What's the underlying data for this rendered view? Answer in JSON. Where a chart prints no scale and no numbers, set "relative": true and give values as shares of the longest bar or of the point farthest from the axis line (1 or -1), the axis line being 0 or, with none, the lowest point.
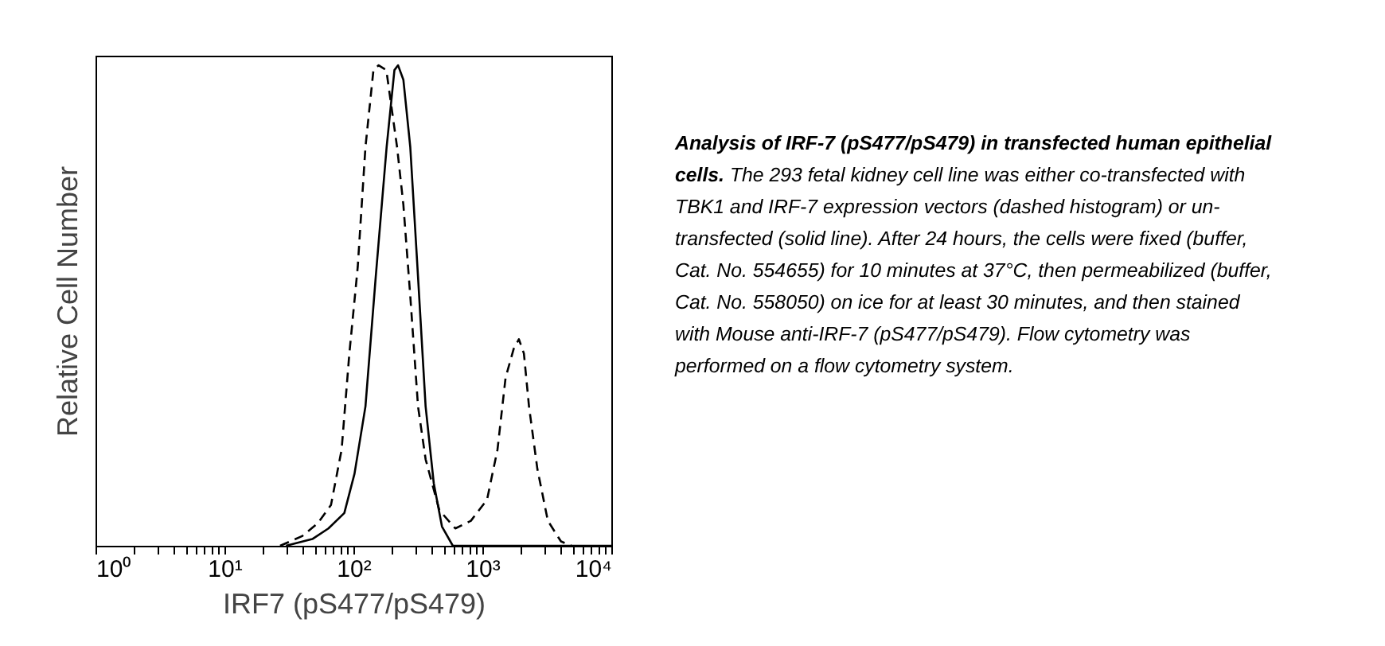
{
  "chart_data": {
    "type": "line",
    "relative": true,
    "log": "x",
    "grid": false,
    "marker": "none",
    "xlabel": "IRF7 (pS477/pS479)",
    "ylabel": "Relative Cell Number",
    "xlim": [
      1,
      10000
    ],
    "xticks": [
      {
        "value": 1,
        "label": "10⁰"
      },
      {
        "value": 2,
        "label": null
      },
      {
        "value": 3,
        "label": null
      },
      {
        "value": 4,
        "label": null
      },
      {
        "value": 5,
        "label": null
      },
      {
        "value": 6,
        "label": null
      },
      {
        "value": 7,
        "label": null
      },
      {
        "value": 8,
        "label": null
      },
      {
        "value": 9,
        "label": null
      },
      {
        "value": 10,
        "label": "10¹"
      },
      {
        "value": 20,
        "label": null
      },
      {
        "value": 30,
        "label": null
      },
      {
        "value": 40,
        "label": null
      },
      {
        "value": 50,
        "label": null
      },
      {
        "value": 60,
        "label": null
      },
      {
        "value": 70,
        "label": null
      },
      {
        "value": 80,
        "label": null
      },
      {
        "value": 90,
        "label": null
      },
      {
        "value": 100,
        "label": "10²"
      },
      {
        "value": 200,
        "label": null
      },
      {
        "value": 300,
        "label": null
      },
      {
        "value": 400,
        "label": null
      },
      {
        "value": 500,
        "label": null
      },
      {
        "value": 600,
        "label": null
      },
      {
        "value": 700,
        "label": null
      },
      {
        "value": 800,
        "label": null
      },
      {
        "value": 900,
        "label": null
      },
      {
        "value": 1000,
        "label": "10³"
      },
      {
        "value": 2000,
        "label": null
      },
      {
        "value": 3000,
        "label": null
      },
      {
        "value": 4000,
        "label": null
      },
      {
        "value": 5000,
        "label": null
      },
      {
        "value": 6000,
        "label": null
      },
      {
        "value": 7000,
        "label": null
      },
      {
        "value": 8000,
        "label": null
      },
      {
        "value": 9000,
        "label": null
      },
      {
        "value": 10000,
        "label": "10⁴"
      }
    ],
    "series": [
      {
        "color": "#000000",
        "line_style": "solid",
        "x": [
          30,
          48,
          64,
          85,
          102,
          124,
          149,
          181,
          208,
          222,
          244,
          276,
          317,
          363,
          420,
          486,
          590,
          10000
        ],
        "values": [
          0,
          0.014,
          0.036,
          0.068,
          0.15,
          0.29,
          0.56,
          0.83,
          0.99,
          1,
          0.97,
          0.83,
          0.56,
          0.29,
          0.13,
          0.04,
          0,
          0
        ]
      },
      {
        "color": "#000000",
        "line_style": "dashed",
        "x": [
          27,
          40,
          53,
          67,
          81,
          93,
          108,
          124,
          143,
          157,
          180,
          218,
          244,
          276,
          317,
          363,
          464,
          617,
          815,
          1087,
          1310,
          1514,
          1750,
          1920,
          2100,
          2300,
          2670,
          3220,
          4070,
          4900
        ],
        "values": [
          0,
          0.02,
          0.047,
          0.085,
          0.2,
          0.4,
          0.58,
          0.83,
          0.99,
          1,
          0.99,
          0.83,
          0.71,
          0.52,
          0.29,
          0.18,
          0.074,
          0.036,
          0.052,
          0.096,
          0.2,
          0.35,
          0.41,
          0.43,
          0.4,
          0.29,
          0.16,
          0.052,
          0.009,
          0
        ]
      }
    ],
    "annotations": [
      "Analysis of IRF-7 (pS477/pS479) in transfected human epithelial cells.",
      "The 293 fetal kidney cell line was either co-transfected with TBK1 and IRF-7 expression vectors (dashed histogram) or un-transfected (solid line).  After 24 hours, the cells were fixed (buffer, Cat. No. 554655) for 10 minutes at 37°C, then permeabilized (buffer, Cat. No. 558050) on ice for at least 30 minutes, and then stained with Mouse anti-IRF-7 (pS477/pS479).  Flow cytometry was performed on a flow cytometry system."
    ]
  }
}
